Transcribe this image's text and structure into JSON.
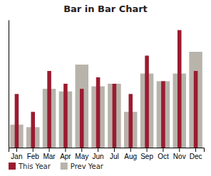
{
  "chart_data": {
    "type": "bar",
    "title": "Bar in Bar Chart",
    "categories": [
      "Jan",
      "Feb",
      "Mar",
      "Apr",
      "May",
      "Jun",
      "Jul",
      "Aug",
      "Sep",
      "Oct",
      "Nov",
      "Dec"
    ],
    "series": [
      {
        "name": "This Year",
        "color": "#9b1b30",
        "values": [
          42,
          28,
          60,
          50,
          46,
          55,
          50,
          42,
          72,
          52,
          92,
          60
        ]
      },
      {
        "name": "Prev Year",
        "color": "#b8b3ab",
        "values": [
          18,
          16,
          46,
          44,
          65,
          48,
          50,
          28,
          58,
          52,
          58,
          75
        ]
      }
    ],
    "ylim": [
      0,
      100
    ],
    "legend": "lower left",
    "tick_labels": "x"
  }
}
